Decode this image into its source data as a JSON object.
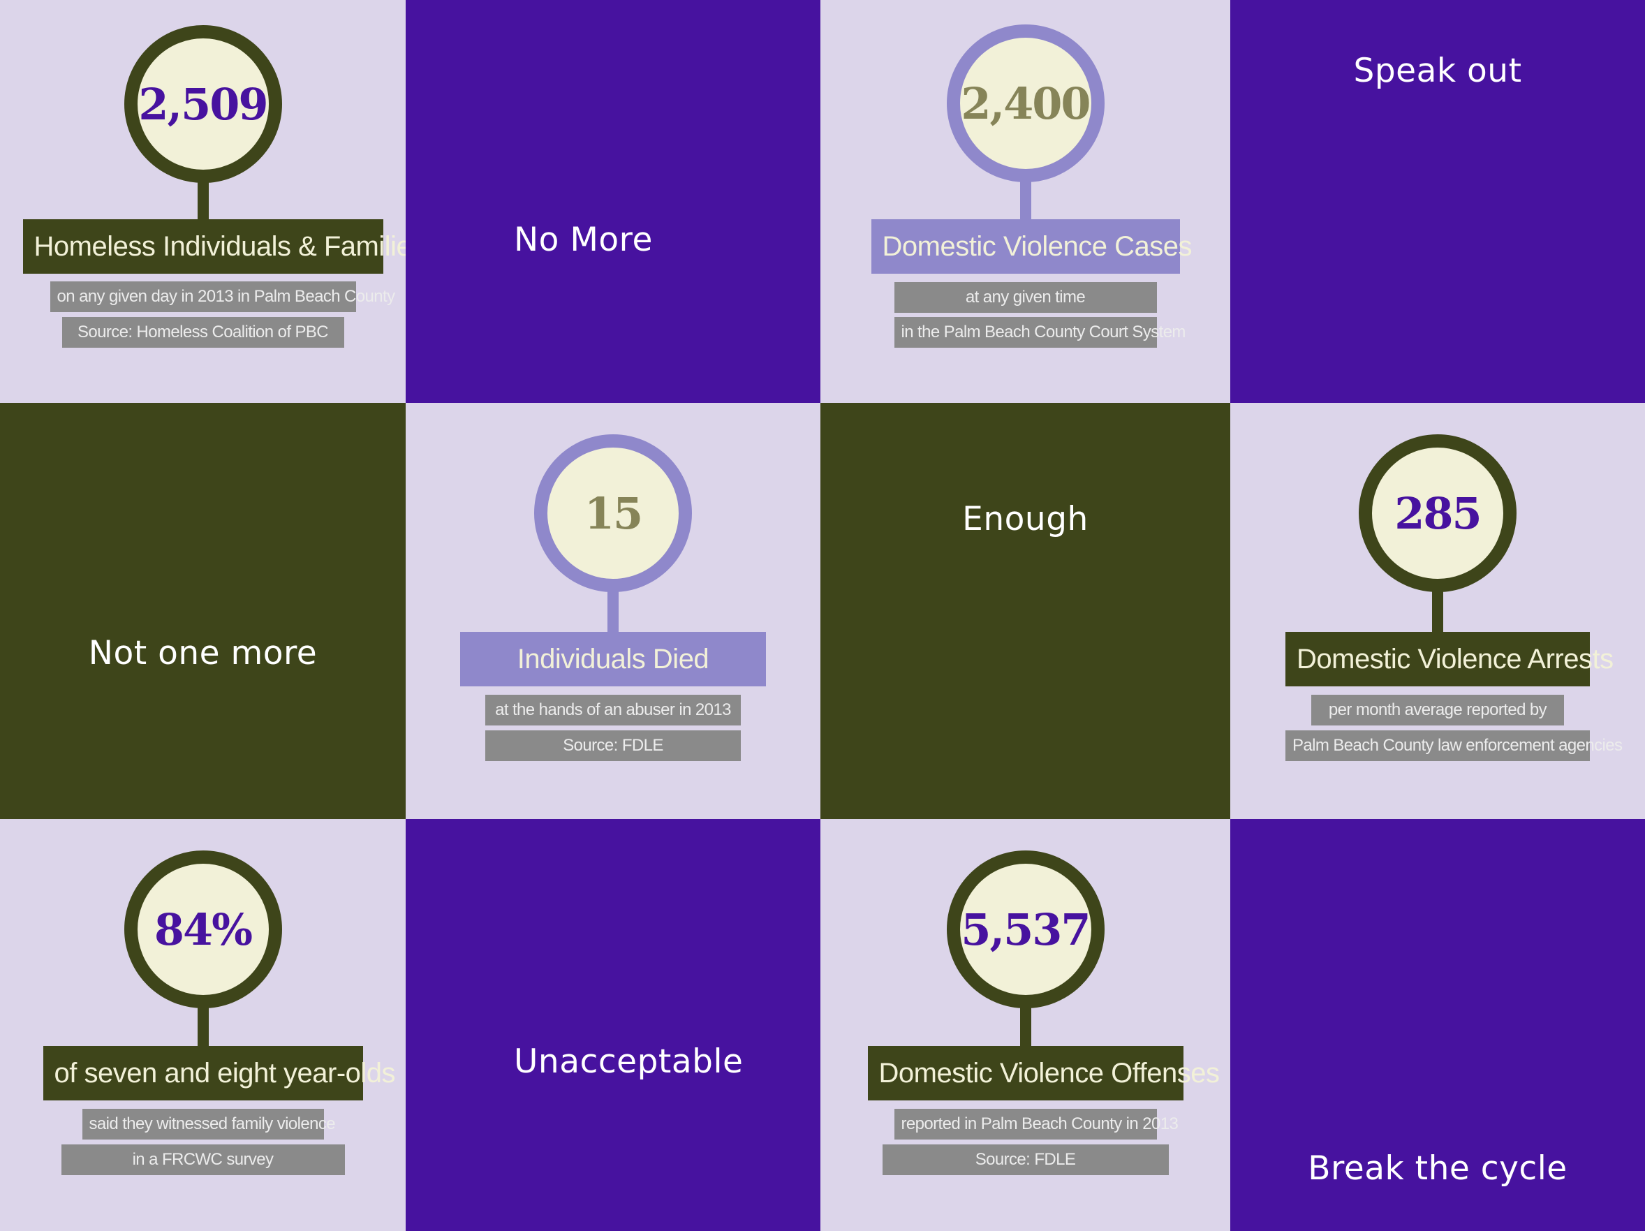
{
  "tiles": {
    "homeless": {
      "number": "2,509",
      "label": "Homeless Individuals & Families",
      "sub1": "on any given day in 2013 in Palm Beach County",
      "sub2": "Source: Homeless Coalition of PBC"
    },
    "no_more": "No More",
    "dv_cases": {
      "number": "2,400",
      "label": "Domestic Violence Cases",
      "sub1": "at any given time",
      "sub2": "in the Palm Beach County Court System"
    },
    "speak_out": "Speak out",
    "not_one_more": "Not one more",
    "died": {
      "number": "15",
      "label": "Individuals Died",
      "sub1": "at the hands of an abuser in 2013",
      "sub2": "Source: FDLE"
    },
    "enough": "Enough",
    "arrests": {
      "number": "285",
      "label": "Domestic Violence Arrests",
      "sub1": "per month average reported by",
      "sub2": "Palm Beach County law enforcement agencies"
    },
    "witnessed": {
      "number": "84%",
      "label": "of seven and eight year-olds",
      "sub1": "said they witnessed family violence",
      "sub2": "in a FRCWC survey"
    },
    "unacceptable": "Unacceptable",
    "offenses": {
      "number": "5,537",
      "label": "Domestic Violence Offenses",
      "sub1": "reported in Palm Beach County in 2013",
      "sub2": "Source: FDLE"
    },
    "break_cycle": "Break the cycle"
  },
  "colors": {
    "light": "#dcd5ea",
    "purple": "#47129f",
    "olive": "#3e451a",
    "periwinkle": "#8f88cb",
    "cream": "#f2f1d8",
    "gray": "#8a8a8a"
  }
}
